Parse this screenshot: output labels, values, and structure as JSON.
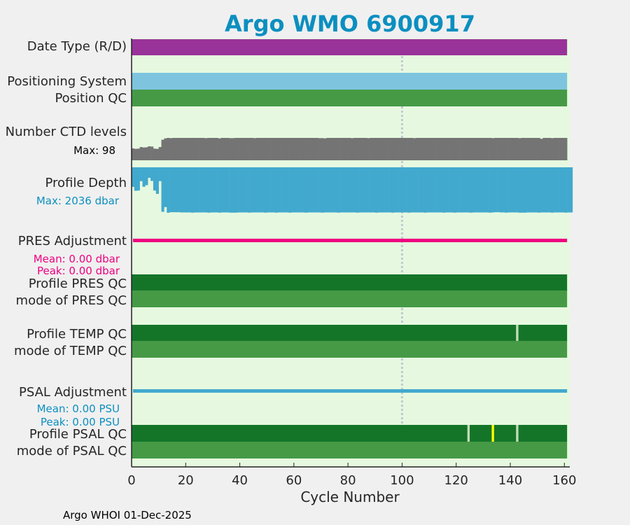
{
  "chart_data": {
    "type": "bar",
    "title": "Argo WMO 6900917",
    "xlabel": "Cycle Number",
    "xlim": [
      0,
      162
    ],
    "xticks": [
      0,
      20,
      40,
      60,
      80,
      100,
      120,
      140,
      160
    ],
    "reference_line_cycle": 100,
    "footer": "Argo WHOI 01-Dec-2025",
    "colors": {
      "title": "#0b8fc0",
      "background": "#e6f9e0",
      "date_type": "#993399",
      "positioning": "#7ec4df",
      "qc_good": "#147529",
      "qc_mode": "#469a46",
      "ctd": "#747474",
      "depth": "#42a9ce",
      "pres_adj": "#ef0080",
      "psal_adj": "#42a9ce",
      "flag_light": "#c3dcb5",
      "flag_yellow": "#ffff00"
    },
    "rows": {
      "date_type": {
        "label": "Date Type (R/D)"
      },
      "positioning": {
        "label": "Positioning System"
      },
      "position_qc": {
        "label": "Position QC"
      },
      "ctd_levels": {
        "label": "Number CTD levels",
        "annotation": "Max: 98",
        "max": 98,
        "values": [
          52,
          50,
          51,
          58,
          56,
          57,
          61,
          60,
          51,
          50,
          58,
          90,
          96,
          98,
          97,
          98,
          98,
          98,
          98,
          98,
          98,
          98,
          98,
          98,
          98,
          98,
          98,
          97,
          98,
          98,
          98,
          98,
          96,
          98,
          98,
          98,
          97,
          97,
          98,
          98,
          98,
          98,
          98,
          98,
          98,
          97,
          98,
          98,
          98,
          98,
          98,
          98,
          98,
          98,
          98,
          98,
          98,
          98,
          98,
          98,
          98,
          98,
          98,
          98,
          98,
          98,
          98,
          98,
          98,
          97,
          97,
          96,
          98,
          98,
          98,
          98,
          98,
          98,
          98,
          98,
          98,
          97,
          98,
          98,
          98,
          98,
          98,
          97,
          98,
          98,
          98,
          98,
          98,
          98,
          98,
          98,
          98,
          98,
          98,
          98,
          98,
          98,
          98,
          98,
          97,
          98,
          98,
          98,
          98,
          98,
          98,
          98,
          98,
          98,
          98,
          98,
          98,
          98,
          98,
          98,
          98,
          98,
          98,
          98,
          98,
          98,
          98,
          98,
          98,
          98,
          98,
          98,
          98,
          97,
          98,
          98,
          98,
          98,
          98,
          98,
          98,
          98,
          98,
          97,
          98,
          98,
          98,
          98,
          98,
          98,
          98,
          94,
          98,
          98,
          98,
          97,
          98,
          98,
          98,
          98,
          98
        ]
      },
      "profile_depth": {
        "label": "Profile Depth",
        "annotation": "Max: 2036 dbar",
        "max": 2036,
        "values": [
          877,
          1050,
          1040,
          620,
          870,
          800,
          470,
          610,
          1040,
          1190,
          620,
          1990,
          1780,
          2036,
          2010,
          2010,
          2010,
          2010,
          2020,
          2020,
          2020,
          2020,
          2030,
          2020,
          2020,
          2020,
          2020,
          2020,
          2030,
          2020,
          2020,
          2020,
          2030,
          2020,
          2020,
          2020,
          2030,
          2030,
          2030,
          2020,
          2020,
          2020,
          2020,
          2030,
          2020,
          2020,
          2020,
          2020,
          2020,
          2030,
          2020,
          2020,
          2020,
          2030,
          2020,
          2020,
          2020,
          2020,
          2030,
          2020,
          2020,
          2020,
          2020,
          2020,
          2030,
          2020,
          2020,
          2020,
          2020,
          2020,
          2030,
          2020,
          2020,
          2020,
          2020,
          2020,
          2030,
          2020,
          2020,
          2020,
          2020,
          2020,
          2020,
          2030,
          2020,
          2020,
          2020,
          2020,
          2020,
          2020,
          2030,
          2020,
          2020,
          2020,
          2020,
          2020,
          2030,
          2020,
          2020,
          2020,
          2020,
          2020,
          2030,
          2020,
          2020,
          2020,
          2020,
          2020,
          2030,
          2020,
          2020,
          2020,
          2020,
          2020,
          2020,
          2030,
          2020,
          2020,
          2020,
          2030,
          2020,
          2020,
          2020,
          2020,
          2020,
          2030,
          2020,
          2020,
          2020,
          2020,
          2020,
          2020,
          2030,
          2020,
          2010,
          2010,
          2020,
          2020,
          2030,
          2020,
          2020,
          2020,
          2020,
          2030,
          2030,
          2030,
          2020,
          2020,
          2020,
          2020,
          2030,
          2020,
          2020,
          2020,
          2020,
          2030,
          2020,
          2020,
          2020,
          2020,
          2030,
          2020,
          2020
        ]
      },
      "pres_adj": {
        "label": "PRES Adjustment",
        "mean": "Mean: 0.00 dbar",
        "peak": "Peak: 0.00 dbar",
        "last_cycle": 161
      },
      "pres_qc": {
        "label": "Profile PRES QC",
        "flags": []
      },
      "pres_mode": {
        "label": "mode of PRES QC"
      },
      "temp_qc": {
        "label": "Profile TEMP QC",
        "flags": [
          {
            "cycle": 143,
            "color": "flag_light"
          }
        ]
      },
      "temp_mode": {
        "label": "mode of TEMP QC"
      },
      "psal_adj": {
        "label": "PSAL Adjustment",
        "mean": "Mean: 0.00 PSU",
        "peak": "Peak: 0.00 PSU",
        "last_cycle": 161
      },
      "psal_qc": {
        "label": "Profile PSAL QC",
        "flags": [
          {
            "cycle": 125,
            "color": "flag_light"
          },
          {
            "cycle": 134,
            "color": "flag_yellow"
          },
          {
            "cycle": 143,
            "color": "flag_light"
          }
        ]
      },
      "psal_mode": {
        "label": "mode of PSAL QC"
      }
    }
  }
}
